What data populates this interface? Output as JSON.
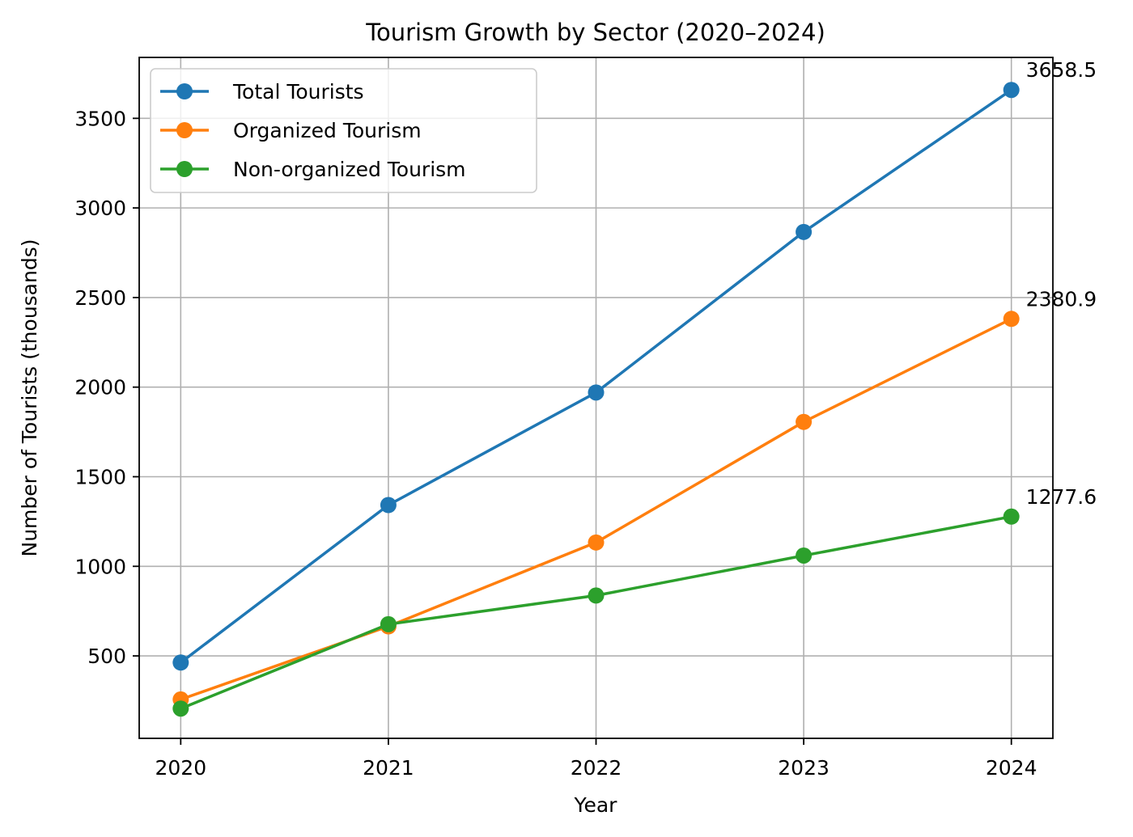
{
  "chart_data": {
    "type": "line",
    "title": "Tourism Growth by Sector (2020–2024)",
    "xlabel": "Year",
    "ylabel": "Number of Tourists (thousands)",
    "x": [
      "2020",
      "2021",
      "2022",
      "2023",
      "2024"
    ],
    "xlim": [
      -0.2,
      4.2
    ],
    "ylim": [
      40,
      3840
    ],
    "yticks": [
      500,
      1000,
      1500,
      2000,
      2500,
      3000,
      3500
    ],
    "grid": true,
    "legend_position": "upper-left",
    "series": [
      {
        "name": "Total Tourists",
        "color": "#1f77b4",
        "values": [
          463,
          1342,
          1970,
          2866,
          3658.5
        ]
      },
      {
        "name": "Organized Tourism",
        "color": "#ff7f0e",
        "values": [
          257,
          665,
          1133,
          1806,
          2380.9
        ]
      },
      {
        "name": "Non-organized Tourism",
        "color": "#2ca02c",
        "values": [
          206,
          677,
          837,
          1060,
          1277.6
        ]
      }
    ],
    "annotations": [
      {
        "series": 0,
        "x_index": 4,
        "text": "3658.5"
      },
      {
        "series": 1,
        "x_index": 4,
        "text": "2380.9"
      },
      {
        "series": 2,
        "x_index": 4,
        "text": "1277.6"
      }
    ]
  }
}
